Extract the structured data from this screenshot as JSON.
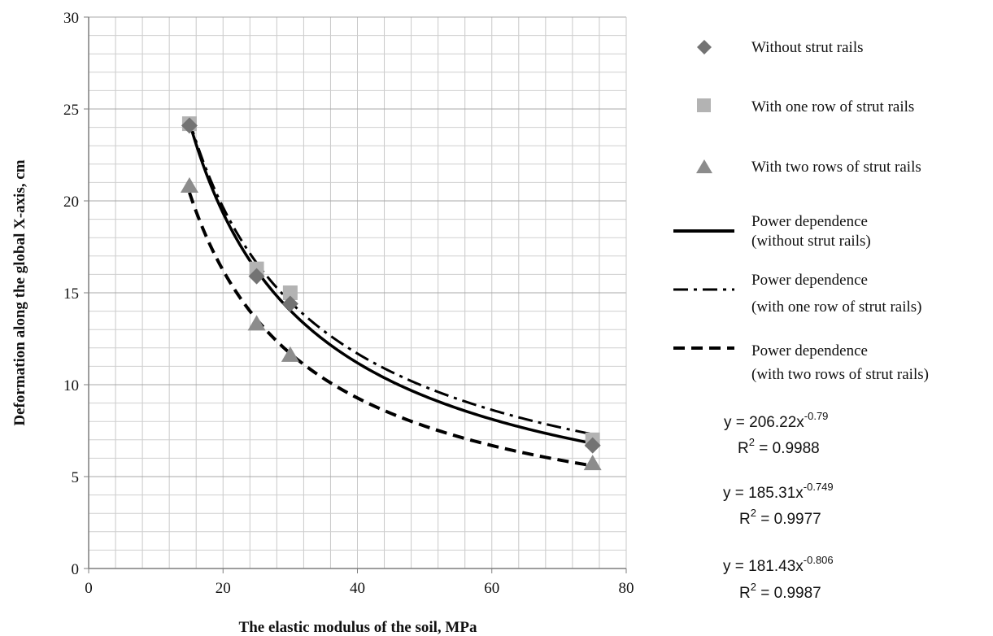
{
  "chart_data": {
    "type": "scatter",
    "title": "",
    "xlabel": "The elastic modulus of the soil, MPa",
    "ylabel": "Deformation along the global X-axis, cm",
    "xlim": [
      0,
      80
    ],
    "ylim": [
      0,
      30
    ],
    "x_ticks": [
      "0",
      "20",
      "40",
      "60",
      "80"
    ],
    "y_ticks": [
      "0",
      "5",
      "10",
      "15",
      "20",
      "25",
      "30"
    ],
    "grid": true,
    "legend_position": "right",
    "series": [
      {
        "name": "Without strut rails",
        "marker": "diamond",
        "color": "#737373",
        "x": [
          15,
          25,
          30,
          75
        ],
        "y": [
          24.1,
          15.9,
          14.4,
          6.7
        ]
      },
      {
        "name": "With one row of strut rails",
        "marker": "square",
        "color": "#b3b3b3",
        "x": [
          15,
          25,
          30,
          75
        ],
        "y": [
          24.2,
          16.3,
          15.0,
          7.0
        ]
      },
      {
        "name": "With two rows of strut rails",
        "marker": "triangle",
        "color": "#8c8c8c",
        "x": [
          15,
          25,
          30,
          75
        ],
        "y": [
          20.8,
          13.3,
          11.6,
          5.7
        ]
      }
    ],
    "trendlines": [
      {
        "name_line1": "Power dependence",
        "name_line2": "(without strut rails)",
        "style": "solid",
        "coef": 206.22,
        "exp": -0.79,
        "x_range": [
          15,
          75
        ],
        "eq_prefix": "y = 206.22x",
        "eq_exp": "-0.79",
        "r2_label": "R",
        "r2_value": " = 0.9988"
      },
      {
        "name_line1": "Power dependence",
        "name_line2": "(with one row of strut rails)",
        "style": "dashdot",
        "coef": 185.31,
        "exp": -0.749,
        "x_range": [
          15,
          75
        ],
        "eq_prefix": "y = 185.31x",
        "eq_exp": "-0.749",
        "r2_label": "R",
        "r2_value": " = 0.9977"
      },
      {
        "name_line1": "Power dependence",
        "name_line2": "(with two rows of strut rails)",
        "style": "dashed",
        "coef": 181.43,
        "exp": -0.806,
        "x_range": [
          15,
          75
        ],
        "eq_prefix": "y = 181.43x",
        "eq_exp": "-0.806",
        "r2_label": "R",
        "r2_value": " = 0.9987"
      }
    ]
  }
}
